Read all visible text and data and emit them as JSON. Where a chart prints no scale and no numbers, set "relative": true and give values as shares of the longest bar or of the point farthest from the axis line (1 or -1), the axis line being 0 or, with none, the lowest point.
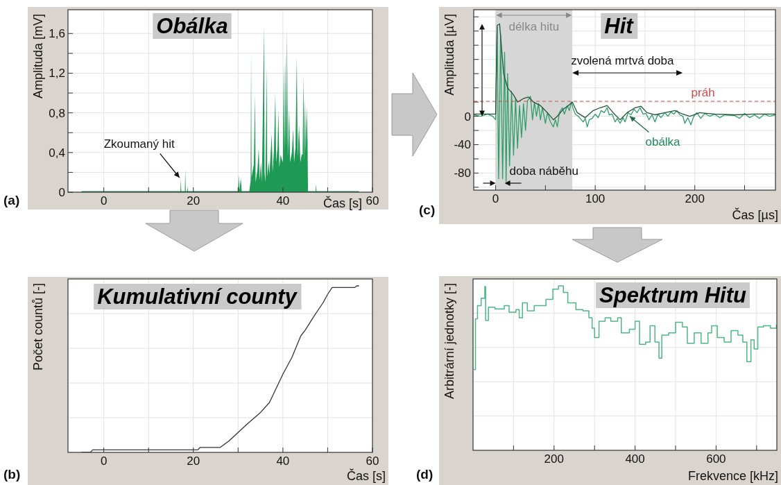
{
  "chart_data": [
    {
      "type": "area",
      "title": "Obálka",
      "xlabel": "Čas [s]",
      "ylabel": "Amplituda [mV]",
      "grid": true,
      "xlim": [
        -8,
        60
      ],
      "xticks": [
        0,
        {
          "value": 10,
          "label": null
        },
        20,
        {
          "value": 30,
          "label": null
        },
        40,
        {
          "value": 50,
          "label": null
        },
        60
      ],
      "ylim": [
        0,
        1.84
      ],
      "yticks": [
        0,
        {
          "value": 0.2,
          "label": null
        },
        {
          "value": 0.4,
          "label": "0,4"
        },
        {
          "value": 0.6,
          "label": null
        },
        {
          "value": 0.8,
          "label": "0,8"
        },
        {
          "value": 1.0,
          "label": null
        },
        {
          "value": 1.2,
          "label": "1,2"
        },
        {
          "value": 1.4,
          "label": null
        },
        {
          "value": 1.6,
          "label": "1,6"
        }
      ],
      "annotations": [
        {
          "text": "Zkoumaný hit",
          "x": 17.2,
          "y": 0.13
        },
        "(a)"
      ],
      "x": [
        -5,
        17.1,
        17.2,
        17.3,
        18.1,
        18.2,
        18.3,
        18.6,
        18.7,
        18.8,
        30,
        30.1,
        30.3,
        30.6,
        30.8,
        32.5,
        32.8,
        32.9,
        33.0,
        33.5,
        33.8,
        33.9,
        34.3,
        34.6,
        34.8,
        35.1,
        35.3,
        35.8,
        35.9,
        36.1,
        36.4,
        36.5,
        36.8,
        37.0,
        37.5,
        37.7,
        38.0,
        38.3,
        38.5,
        38.8,
        39.0,
        39.2,
        39.5,
        39.7,
        40.0,
        40.2,
        40.4,
        40.6,
        40.75,
        40.9,
        41.1,
        41.4,
        41.6,
        42.0,
        42.3,
        42.5,
        42.8,
        43.1,
        43.3,
        43.6,
        43.9,
        44.2,
        44.4,
        44.6,
        44.75,
        44.9,
        45.1,
        45.3,
        45.5,
        45.6,
        47.3,
        47.4,
        47.5,
        57
      ],
      "series": [
        {
          "color": "#1e9a55",
          "values": [
            0.01,
            0.01,
            0.13,
            0.01,
            0.01,
            0.23,
            0.01,
            0.01,
            0.06,
            0.01,
            0.01,
            0.18,
            0.02,
            0.14,
            0.01,
            0.01,
            0.12,
            1.43,
            0.15,
            0.28,
            0.98,
            0.1,
            0.22,
            0.44,
            0.12,
            0.3,
            0.1,
            1.68,
            0.2,
            0.1,
            1.27,
            0.15,
            0.31,
            0.18,
            0.59,
            0.2,
            0.42,
            0.99,
            0.3,
            0.45,
            0.83,
            0.25,
            0.38,
            0.34,
            0.3,
            1.3,
            0.4,
            1.38,
            0.45,
            1.66,
            0.35,
            0.84,
            0.3,
            0.4,
            0.64,
            0.3,
            0.45,
            1.37,
            0.35,
            0.68,
            0.3,
            0.38,
            0.38,
            1.19,
            0.3,
            0.95,
            0.4,
            0.86,
            0.53,
            0.01,
            0.01,
            0.08,
            0.01,
            0.01
          ]
        }
      ]
    },
    {
      "type": "line",
      "title": "Hit",
      "xlabel": "Čas [µs]",
      "ylabel": "Amplituda [µV]",
      "grid": true,
      "xlim": [
        -22,
        281
      ],
      "xticks": [
        0,
        {
          "value": 50,
          "label": null
        },
        100,
        {
          "value": 150,
          "label": null
        },
        200,
        {
          "value": 250,
          "label": null
        }
      ],
      "ylim": [
        -104,
        150
      ],
      "yticks": [
        {
          "value": -100,
          "label": null
        },
        -80,
        {
          "value": -60,
          "label": null
        },
        -40,
        {
          "value": -20,
          "label": null
        },
        0,
        {
          "value": 20,
          "label": null
        },
        {
          "value": 40,
          "label": null
        },
        {
          "value": 60,
          "label": null
        },
        {
          "value": 80,
          "label": null
        },
        {
          "value": 100,
          "label": null
        },
        {
          "value": 120,
          "label": null
        },
        {
          "value": 140,
          "label": null
        }
      ],
      "bands": [
        {
          "axis": "x",
          "from": 0,
          "to": 77,
          "label": "délka hitu",
          "color": "#d6d6d6"
        }
      ],
      "ref_lines": [
        {
          "axis": "y",
          "value": 21,
          "label": "práh",
          "color": "#d04a4a",
          "line_style": "dashed"
        }
      ],
      "annotations": [
        "zvolená mrtvá doba",
        "doba náběhu",
        {
          "text": "obálka",
          "x": 133,
          "y": 2
        },
        "(c)"
      ],
      "series": [
        {
          "color": "#2e9e68",
          "x": [
            -22,
            -15,
            -8,
            -3,
            0,
            1.5,
            3,
            5,
            7,
            9,
            10.5,
            12,
            14,
            16,
            18,
            20,
            22,
            24,
            26,
            28,
            30,
            32,
            35,
            37,
            39,
            41,
            43,
            45,
            47,
            50,
            52,
            55,
            58,
            60,
            62,
            64,
            67,
            69,
            72,
            74,
            76,
            78,
            80,
            83,
            86,
            88,
            90,
            92,
            94,
            97,
            100,
            103,
            106,
            109,
            112,
            114,
            117,
            120,
            122,
            125,
            128,
            130,
            133,
            136,
            139,
            142,
            145,
            148,
            151,
            154,
            157,
            160,
            163,
            166,
            170,
            173,
            176,
            179,
            182,
            185,
            188,
            190,
            193,
            196,
            199,
            202,
            206,
            210,
            215,
            220,
            225,
            230,
            240,
            245,
            250,
            255,
            260,
            265,
            270,
            275,
            281
          ],
          "values": [
            2,
            0,
            3,
            0,
            -5,
            126,
            -88,
            115,
            -88,
            90,
            -92,
            60,
            -70,
            35,
            -55,
            25,
            -45,
            15,
            -30,
            18,
            -20,
            22,
            28,
            -5,
            20,
            0,
            18,
            -5,
            12,
            -10,
            5,
            -8,
            -15,
            -5,
            -15,
            5,
            12,
            3,
            15,
            8,
            20,
            10,
            3,
            0,
            -5,
            -8,
            -3,
            -15,
            -5,
            -3,
            3,
            -2,
            8,
            5,
            12,
            2,
            3,
            -8,
            -3,
            -10,
            -2,
            -8,
            5,
            2,
            10,
            5,
            12,
            3,
            4,
            -5,
            2,
            -8,
            3,
            -2,
            5,
            0,
            6,
            3,
            8,
            2,
            0,
            -10,
            -2,
            -12,
            0,
            5,
            -3,
            4,
            0,
            3,
            -2,
            2,
            1,
            -3,
            4,
            -2,
            2,
            -3,
            3,
            0,
            2
          ]
        },
        {
          "color": "#24533c",
          "x": [
            -22,
            0,
            1.5,
            4,
            8,
            12,
            18,
            22,
            28,
            33,
            38,
            45,
            52,
            58,
            62,
            68,
            73,
            77,
            82,
            90,
            98,
            105,
            112,
            118,
            125,
            132,
            140,
            146,
            152,
            160,
            170,
            180,
            188,
            195,
            205,
            220,
            240,
            260,
            281
          ],
          "values": [
            3,
            3,
            128,
            130,
            60,
            40,
            30,
            20,
            25,
            27,
            20,
            15,
            5,
            -5,
            0,
            10,
            15,
            20,
            5,
            -2,
            8,
            12,
            15,
            5,
            -5,
            5,
            12,
            14,
            5,
            2,
            5,
            8,
            3,
            0,
            5,
            3,
            2,
            3,
            3
          ]
        }
      ]
    },
    {
      "type": "line",
      "title": "Kumulativní county",
      "xlabel": "Čas [s]",
      "ylabel": "Počet countů [-]",
      "grid": true,
      "relative": true,
      "tick_labels": "x",
      "xlim": [
        -8,
        60
      ],
      "xticks": [
        0,
        {
          "value": 10,
          "label": null
        },
        20,
        {
          "value": 30,
          "label": null
        },
        40,
        {
          "value": 50,
          "label": null
        },
        60
      ],
      "annotations": [
        "(b)"
      ],
      "x": [
        -5,
        -3,
        -2.5,
        21,
        21.5,
        26,
        27,
        28,
        30,
        32,
        35,
        37,
        40,
        42,
        44,
        45,
        47,
        49,
        50,
        51,
        56,
        56.5,
        57
      ],
      "series": [
        {
          "color": "#333333",
          "values": [
            0,
            0,
            0.015,
            0.015,
            0.03,
            0.03,
            0.05,
            0.07,
            0.12,
            0.17,
            0.24,
            0.3,
            0.47,
            0.57,
            0.7,
            0.735,
            0.82,
            0.9,
            0.95,
            0.99,
            0.99,
            1.0,
            1.0
          ]
        }
      ]
    },
    {
      "type": "step",
      "title": "Spektrum Hitu",
      "xlabel": "Frekvence [kHz]",
      "ylabel": "Arbitrární jednotky [-]",
      "grid": true,
      "relative": true,
      "tick_labels": "x",
      "xlim": [
        0,
        750
      ],
      "xticks": [
        {
          "value": 100,
          "label": null
        },
        200,
        {
          "value": 300,
          "label": null
        },
        400,
        {
          "value": 500,
          "label": null
        },
        600,
        {
          "value": 700,
          "label": null
        }
      ],
      "annotations": [
        "(d)"
      ],
      "x": [
        2,
        6,
        11,
        20,
        29,
        31,
        38,
        54,
        77,
        89,
        106,
        114,
        122,
        134,
        151,
        180,
        197,
        211,
        223,
        234,
        254,
        271,
        286,
        294,
        300,
        311,
        326,
        340,
        357,
        366,
        386,
        400,
        411,
        426,
        437,
        449,
        459,
        466,
        483,
        500,
        517,
        529,
        546,
        563,
        580,
        589,
        603,
        620,
        637,
        654,
        666,
        676,
        686,
        694,
        703,
        717,
        734,
        749
      ],
      "series": [
        {
          "color": "#4cb784",
          "values": [
            0.49,
            0.8,
            0.88,
            0.925,
            0.996,
            0.79,
            0.87,
            0.86,
            0.88,
            0.84,
            0.855,
            0.806,
            0.897,
            0.848,
            0.88,
            0.918,
            0.98,
            1.0,
            0.96,
            0.897,
            0.855,
            0.848,
            0.806,
            0.743,
            0.686,
            0.785,
            0.806,
            0.785,
            0.806,
            0.714,
            0.736,
            0.785,
            0.644,
            0.658,
            0.757,
            0.658,
            0.56,
            0.7,
            0.714,
            0.778,
            0.75,
            0.651,
            0.714,
            0.651,
            0.714,
            0.757,
            0.686,
            0.658,
            0.728,
            0.7,
            0.658,
            0.539,
            0.672,
            0.616,
            0.75,
            0.757,
            0.743,
            0.764
          ]
        }
      ]
    }
  ]
}
